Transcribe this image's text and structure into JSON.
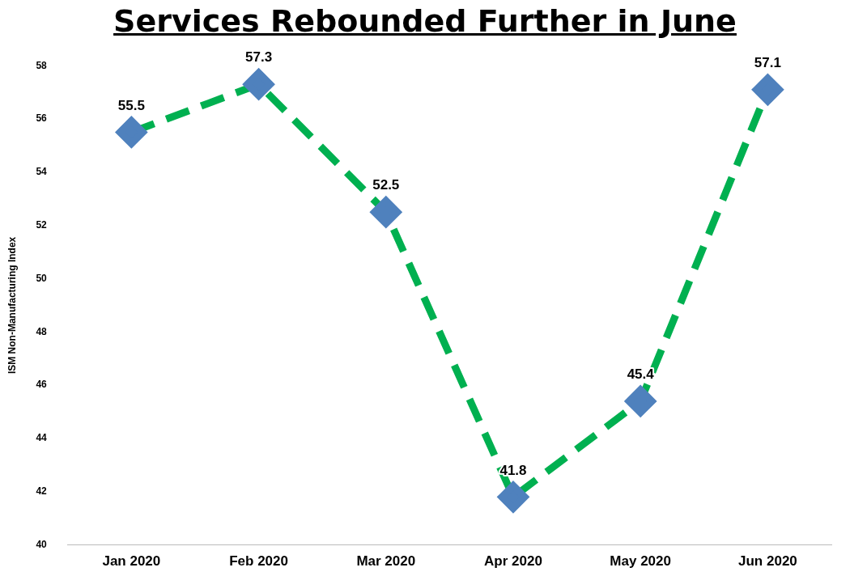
{
  "chart_data": {
    "type": "line",
    "title": "Services Rebounded Further in June",
    "ylabel": "ISM Non-Manufacturing Index",
    "categories": [
      "Jan 2020",
      "Feb 2020",
      "Mar 2020",
      "Apr 2020",
      "May 2020",
      "Jun 2020"
    ],
    "series": [
      {
        "color": "#00b050",
        "colors": [
          "#4f81bd",
          "#4f81bd",
          "#4f81bd",
          "#4f81bd",
          "#4f81bd",
          "#4f81bd"
        ],
        "values": [
          55.5,
          57.3,
          52.5,
          41.8,
          45.4,
          57.1
        ]
      }
    ],
    "ylim": [
      40,
      58
    ],
    "yticks": [
      40,
      42,
      44,
      46,
      48,
      50,
      52,
      54,
      56,
      58
    ],
    "grid": false,
    "legend": false,
    "marker": "diamond",
    "line_style": "dashed",
    "data_labels": true
  }
}
